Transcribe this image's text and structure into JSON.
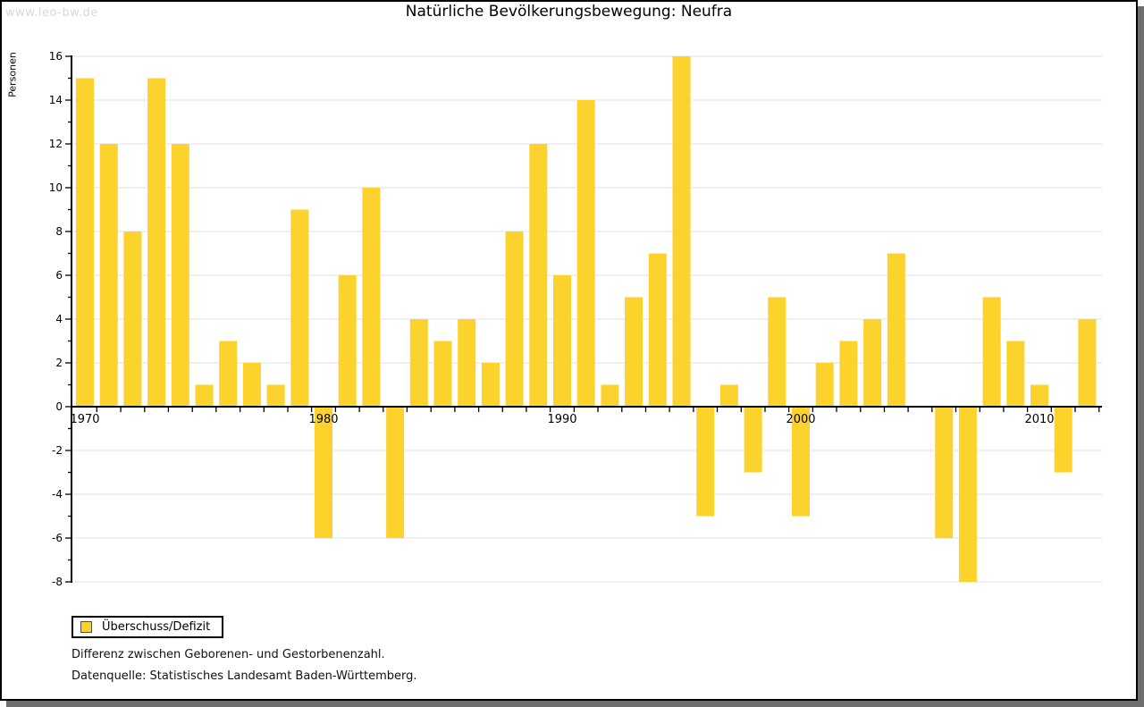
{
  "page": {
    "watermark": "www.leo-bw.de",
    "footnote1": "Differenz zwischen Geborenen- und Gestorbenenzahl.",
    "footnote2": "Datenquelle: Statistisches Landesamt Baden-Württemberg."
  },
  "chart_data": {
    "type": "bar",
    "title": "Natürliche Bevölkerungsbewegung: Neufra",
    "ylabel": "Personen",
    "xlabel": "",
    "legend_label": "Überschuss/Defizit",
    "legend_position": "bottom-left",
    "grid": true,
    "ylim": [
      -8,
      16
    ],
    "ytick_step": 2,
    "xticks_labeled": [
      1970,
      1980,
      1990,
      2000,
      2010
    ],
    "bar_color": "#FCD32D",
    "grid_color": "#E2E2E2",
    "axis_color": "#000000",
    "categories": [
      1970,
      1971,
      1972,
      1973,
      1974,
      1975,
      1976,
      1977,
      1978,
      1979,
      1980,
      1981,
      1982,
      1983,
      1984,
      1985,
      1986,
      1987,
      1988,
      1989,
      1990,
      1991,
      1992,
      1993,
      1994,
      1995,
      1996,
      1997,
      1998,
      1999,
      2000,
      2001,
      2002,
      2003,
      2004,
      2005,
      2006,
      2007,
      2008,
      2009,
      2010,
      2011,
      2012
    ],
    "values": [
      15,
      12,
      8,
      15,
      12,
      1,
      3,
      2,
      1,
      9,
      -6,
      6,
      10,
      -6,
      4,
      3,
      4,
      2,
      8,
      12,
      6,
      14,
      1,
      5,
      7,
      16,
      -5,
      1,
      -3,
      5,
      -5,
      2,
      3,
      4,
      7,
      0,
      -6,
      -8,
      5,
      3,
      1,
      -3,
      4
    ]
  }
}
